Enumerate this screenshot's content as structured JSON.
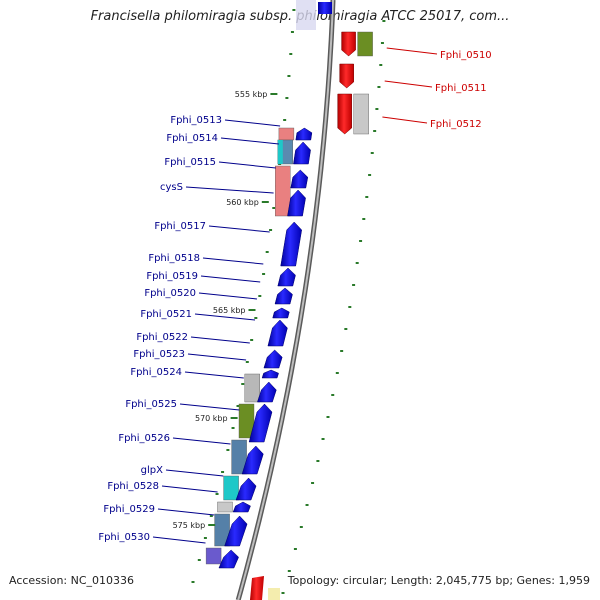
{
  "title": "Francisella philomiragia subsp. philomiragia ATCC 25017, com...",
  "footer": {
    "accession_label": "Accession:",
    "accession": "NC_010336",
    "topology_label": "Topology:",
    "topology": "circular",
    "length_label": "Length:",
    "length": "2,045,775 bp",
    "genes_label": "Genes:",
    "genes": "1,959"
  },
  "colors": {
    "forward_cds": "#1414e6",
    "reverse_cds": "#e61414",
    "backbone": "#888888",
    "forward_label": "#00008b",
    "reverse_label": "#cc0000",
    "tick": "#2a7a2a"
  },
  "kbp_markers": [
    "555 kbp",
    "560 kbp",
    "565 kbp",
    "570 kbp",
    "575 kbp"
  ],
  "forward_genes": [
    {
      "label": "Fphi_0513"
    },
    {
      "label": "Fphi_0514"
    },
    {
      "label": "Fphi_0515"
    },
    {
      "label": "cysS"
    },
    {
      "label": "Fphi_0517"
    },
    {
      "label": "Fphi_0518"
    },
    {
      "label": "Fphi_0519"
    },
    {
      "label": "Fphi_0520"
    },
    {
      "label": "Fphi_0521"
    },
    {
      "label": "Fphi_0522"
    },
    {
      "label": "Fphi_0523"
    },
    {
      "label": "Fphi_0524"
    },
    {
      "label": "Fphi_0525"
    },
    {
      "label": "Fphi_0526"
    },
    {
      "label": "glpX"
    },
    {
      "label": "Fphi_0528"
    },
    {
      "label": "Fphi_0529"
    },
    {
      "label": "Fphi_0530"
    }
  ],
  "reverse_genes": [
    {
      "label": "Fphi_0510"
    },
    {
      "label": "Fphi_0511"
    },
    {
      "label": "Fphi_0512"
    }
  ]
}
